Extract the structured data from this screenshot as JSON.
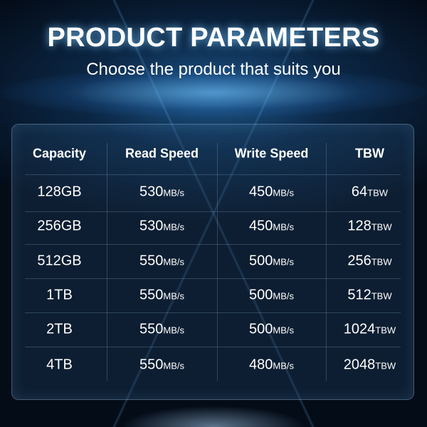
{
  "title": "PRODUCT PARAMETERS",
  "subtitle": "Choose the product that suits you",
  "table": {
    "headers": [
      "Capacity",
      "Read Speed",
      "Write Speed",
      "TBW"
    ],
    "rows": [
      {
        "capacity": "128GB",
        "read": "530",
        "read_unit": "MB/s",
        "write": "450",
        "write_unit": "MB/s",
        "tbw": "64",
        "tbw_unit": "TBW"
      },
      {
        "capacity": "256GB",
        "read": "530",
        "read_unit": "MB/s",
        "write": "450",
        "write_unit": "MB/s",
        "tbw": "128",
        "tbw_unit": "TBW"
      },
      {
        "capacity": "512GB",
        "read": "550",
        "read_unit": "MB/s",
        "write": "500",
        "write_unit": "MB/s",
        "tbw": "256",
        "tbw_unit": "TBW"
      },
      {
        "capacity": "1TB",
        "read": "550",
        "read_unit": "MB/s",
        "write": "500",
        "write_unit": "MB/s",
        "tbw": "512",
        "tbw_unit": "TBW"
      },
      {
        "capacity": "2TB",
        "read": "550",
        "read_unit": "MB/s",
        "write": "500",
        "write_unit": "MB/s",
        "tbw": "1024",
        "tbw_unit": "TBW"
      },
      {
        "capacity": "4TB",
        "read": "550",
        "read_unit": "MB/s",
        "write": "480",
        "write_unit": "MB/s",
        "tbw": "2048",
        "tbw_unit": "TBW"
      }
    ]
  }
}
